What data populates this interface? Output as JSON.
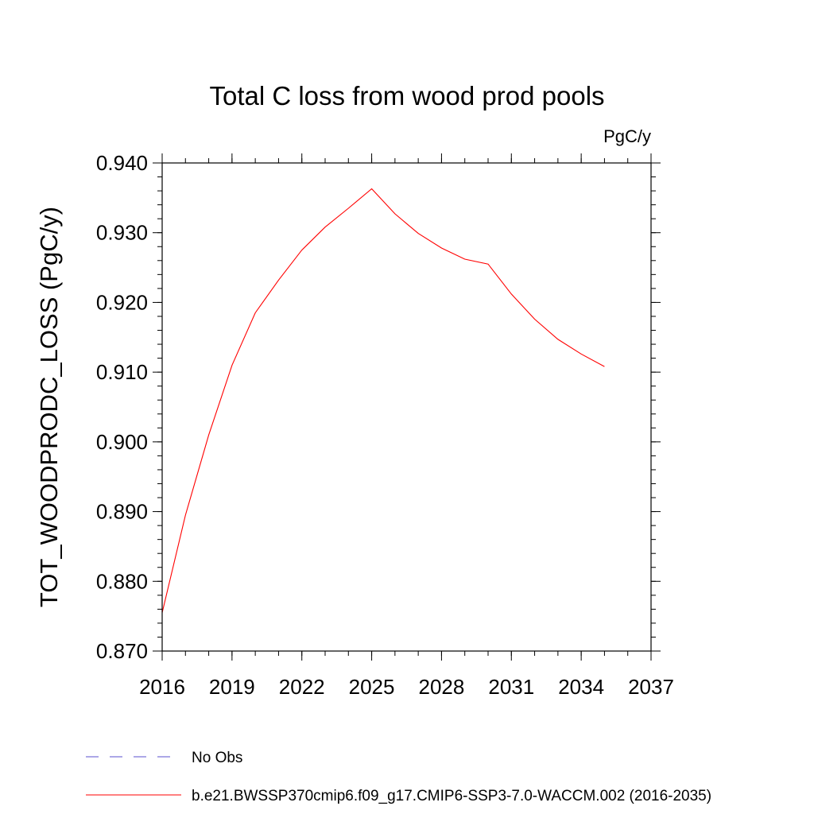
{
  "chart_data": {
    "type": "line",
    "title": "Total C loss from wood prod pools",
    "units_label": "PgC/y",
    "ylabel": "TOT_WOODPRODC_LOSS  (PgC/y)",
    "xlabel": "",
    "xlim": [
      2016,
      2037
    ],
    "ylim": [
      0.87,
      0.94
    ],
    "x_ticks": [
      "2016",
      "2019",
      "2022",
      "2025",
      "2028",
      "2031",
      "2034",
      "2037"
    ],
    "y_ticks": [
      "0.870",
      "0.880",
      "0.890",
      "0.900",
      "0.910",
      "0.920",
      "0.930",
      "0.940"
    ],
    "grid": false,
    "legend_position": "bottom-left",
    "series": [
      {
        "name": "b.e21.BWSSP370cmip6.f09_g17.CMIP6-SSP3-7.0-WACCM.002 (2016-2035)",
        "color": "#ff0000",
        "style": "solid",
        "x": [
          2016,
          2017,
          2018,
          2019,
          2020,
          2021,
          2022,
          2023,
          2024,
          2025,
          2026,
          2027,
          2028,
          2029,
          2030,
          2031,
          2032,
          2033,
          2034,
          2035
        ],
        "values": [
          0.8755,
          0.8895,
          0.901,
          0.911,
          0.9185,
          0.9232,
          0.9275,
          0.9308,
          0.9335,
          0.9363,
          0.9327,
          0.9299,
          0.9278,
          0.9262,
          0.9255,
          0.9212,
          0.9176,
          0.9147,
          0.9126,
          0.9108
        ]
      },
      {
        "name": "No Obs",
        "color": "#5a4fcf",
        "style": "dashed",
        "x": [],
        "values": []
      }
    ]
  }
}
